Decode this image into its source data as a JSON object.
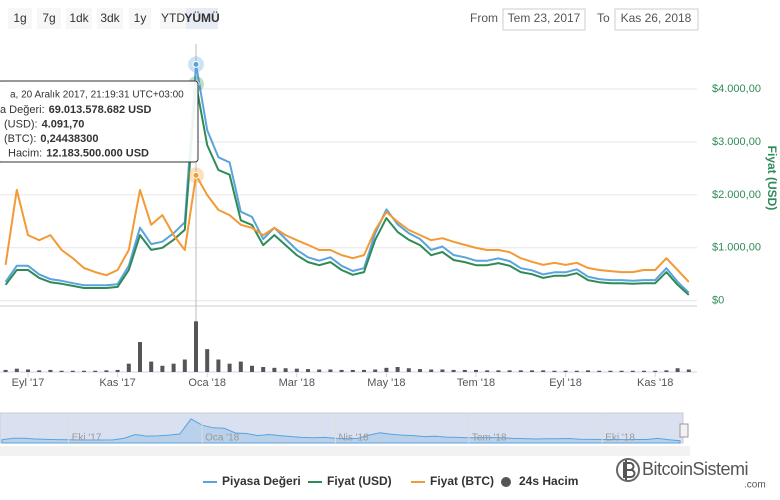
{
  "range_selector": {
    "buttons": [
      {
        "label": "1g"
      },
      {
        "label": "7g"
      },
      {
        "label": "1dk"
      },
      {
        "label": "3dk"
      },
      {
        "label": "1y"
      },
      {
        "label": "YTD"
      },
      {
        "label": "YÜMÜ",
        "active": true
      }
    ],
    "from_label": "From",
    "from": "Tem 23, 2017",
    "to_label": "To",
    "to": "Kas 26, 2018"
  },
  "watermark": {
    "name": "BitcoinSistemi",
    "suffix": ".com"
  },
  "chart_data": {
    "type": "line",
    "y_label": "Fiyat (USD)",
    "categories": [
      null,
      null,
      "Eyl '17",
      null,
      null,
      null,
      null,
      null,
      null,
      null,
      "Kas '17",
      null,
      null,
      null,
      null,
      null,
      null,
      null,
      "Oca '18",
      null,
      null,
      null,
      null,
      null,
      null,
      null,
      "Mar '18",
      null,
      null,
      null,
      null,
      null,
      null,
      null,
      "May '18",
      null,
      null,
      null,
      null,
      null,
      null,
      null,
      "Tem '18",
      null,
      null,
      null,
      null,
      null,
      null,
      null,
      "Eyl '18",
      null,
      null,
      null,
      null,
      null,
      null,
      null,
      "Kas '18",
      null,
      null,
      null
    ],
    "navigator_categories": [
      null,
      null,
      null,
      null,
      null,
      null,
      "Eki '17",
      null,
      null,
      null,
      null,
      null,
      null,
      null,
      null,
      null,
      null,
      null,
      "Oca '18",
      null,
      null,
      null,
      null,
      null,
      null,
      null,
      null,
      null,
      null,
      null,
      "Nis '18",
      null,
      null,
      null,
      null,
      null,
      null,
      null,
      null,
      null,
      null,
      null,
      "Tem '18",
      null,
      null,
      null,
      null,
      null,
      null,
      null,
      null,
      null,
      null,
      null,
      "Eki '18",
      null,
      null,
      null,
      null,
      null,
      null,
      null
    ],
    "ylim": [
      -100,
      4850
    ],
    "yticks": [
      {
        "value": 0,
        "label": "$0"
      },
      {
        "value": 1000,
        "label": "$1.000,00"
      },
      {
        "value": 2000,
        "label": "$2.000,00"
      },
      {
        "value": 3000,
        "label": "$3.000,00"
      },
      {
        "value": 4000,
        "label": "$4.000,00"
      }
    ],
    "y2lim": [
      -2000000000,
      75000000000
    ],
    "y3lim": [
      -0.01,
      0.5
    ],
    "y4lim": [
      0,
      12500000000
    ],
    "grid": true,
    "series": [
      {
        "name": "Piyasa Değeri",
        "color": "#5ba3dd",
        "axis": "y2",
        "values": [
          5100000000,
          9800000000,
          9800000000,
          7300000000,
          5900000000,
          5400000000,
          4700000000,
          4100000000,
          4100000000,
          4100000000,
          4400000000,
          9800000000,
          21000000000,
          16200000000,
          16900000000,
          19400000000,
          22600000000,
          69013578682,
          49700000000,
          41700000000,
          40200000000,
          25700000000,
          24200000000,
          17700000000,
          21000000000,
          17700000000,
          14500000000,
          12300000000,
          11300000000,
          12300000000,
          9800000000,
          8300000000,
          9100000000,
          19400000000,
          26400000000,
          22000000000,
          19400000000,
          17700000000,
          14500000000,
          15500000000,
          13000000000,
          12300000000,
          11300000000,
          11300000000,
          12000000000,
          11200000000,
          9100000000,
          8500000000,
          7300000000,
          7900000000,
          7900000000,
          8800000000,
          6600000000,
          5900000000,
          5600000000,
          5600000000,
          5400000000,
          5600000000,
          5600000000,
          9100000000,
          5100000000,
          1900000000
        ]
      },
      {
        "name": "Fiyat (USD)",
        "color": "#2e8b57",
        "values": [
          300,
          580,
          580,
          430,
          350,
          320,
          280,
          240,
          240,
          240,
          260,
          580,
          1240,
          960,
          1000,
          1150,
          1340,
          4091.7,
          2940,
          2470,
          2380,
          1520,
          1430,
          1050,
          1240,
          1050,
          860,
          730,
          670,
          730,
          580,
          490,
          540,
          1150,
          1560,
          1300,
          1150,
          1050,
          860,
          920,
          770,
          730,
          670,
          670,
          710,
          660,
          540,
          500,
          430,
          470,
          470,
          520,
          390,
          350,
          330,
          330,
          320,
          330,
          330,
          540,
          300,
          110
        ]
      },
      {
        "name": "Fiyat (BTC)",
        "color": "#f39a34",
        "axis": "y3",
        "values": [
          0.07,
          0.216,
          0.128,
          0.118,
          0.128,
          0.099,
          0.083,
          0.064,
          0.056,
          0.05,
          0.06,
          0.099,
          0.216,
          0.148,
          0.167,
          0.128,
          0.099,
          0.244383,
          0.206,
          0.177,
          0.167,
          0.148,
          0.142,
          0.128,
          0.142,
          0.128,
          0.118,
          0.109,
          0.099,
          0.099,
          0.089,
          0.083,
          0.089,
          0.138,
          0.173,
          0.154,
          0.138,
          0.128,
          0.118,
          0.122,
          0.115,
          0.109,
          0.103,
          0.099,
          0.099,
          0.095,
          0.083,
          0.076,
          0.07,
          0.074,
          0.07,
          0.074,
          0.064,
          0.06,
          0.058,
          0.056,
          0.056,
          0.06,
          0.06,
          0.083,
          0.06,
          0.037
        ]
      },
      {
        "name": "24s Hacim",
        "color": "#555555",
        "type": "bar",
        "axis": "y4",
        "values": [
          500000000,
          800000000,
          600000000,
          400000000,
          500000000,
          300000000,
          300000000,
          300000000,
          300000000,
          400000000,
          500000000,
          2000000000,
          7200000000,
          2500000000,
          1500000000,
          2000000000,
          3000000000,
          12183500000,
          5500000000,
          3000000000,
          2000000000,
          2500000000,
          1500000000,
          1200000000,
          1000000000,
          900000000,
          800000000,
          700000000,
          600000000,
          600000000,
          500000000,
          500000000,
          500000000,
          600000000,
          1000000000,
          1200000000,
          900000000,
          700000000,
          600000000,
          600000000,
          500000000,
          500000000,
          500000000,
          400000000,
          400000000,
          400000000,
          400000000,
          400000000,
          400000000,
          300000000,
          300000000,
          300000000,
          400000000,
          300000000,
          300000000,
          300000000,
          300000000,
          300000000,
          300000000,
          400000000,
          900000000,
          600000000
        ]
      }
    ],
    "tooltip": {
      "header": "a, 20 Aralık 2017, 21:19:31 UTC+03:00",
      "rows": [
        {
          "label": "a Değeri:",
          "value": "69.013.578.682 USD"
        },
        {
          "label": "(USD):",
          "value": "4.091,70"
        },
        {
          "label": "(BTC):",
          "value": "0,24438300"
        },
        {
          "label": "Hacim:",
          "value": "12.183.500.000 USD"
        }
      ]
    }
  }
}
